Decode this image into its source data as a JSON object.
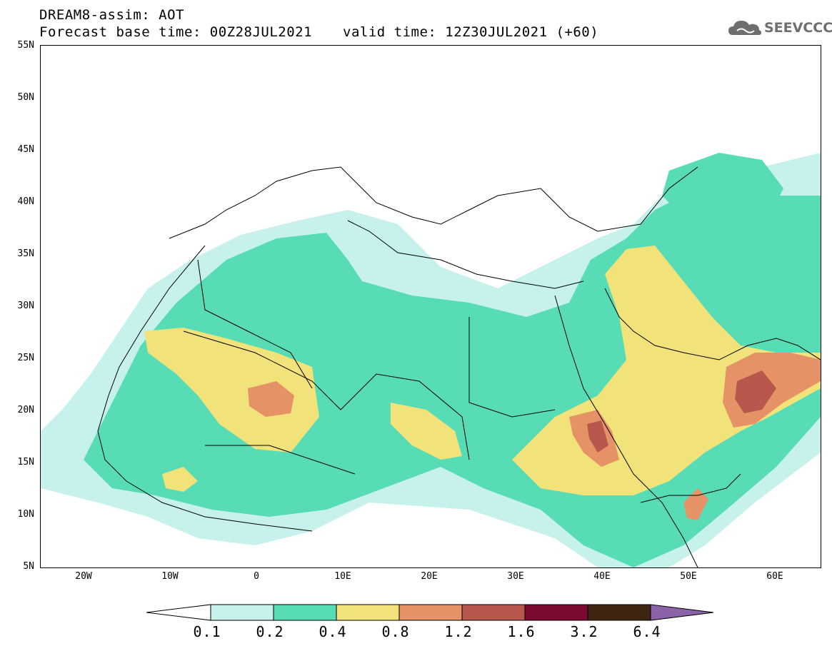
{
  "header": {
    "title": "DREAM8-assim: AOT",
    "base_time": "Forecast base time: 00Z28JUL2021",
    "valid_time": "valid time: 12Z30JUL2021 (+60)"
  },
  "logo": {
    "text": "SEEVCCC",
    "icon": "cloud-icon"
  },
  "map": {
    "lat_labels": [
      "55N",
      "50N",
      "45N",
      "40N",
      "35N",
      "30N",
      "25N",
      "20N",
      "15N",
      "10N",
      "5N"
    ],
    "lon_labels": [
      "20W",
      "10W",
      "0",
      "10E",
      "20E",
      "30E",
      "40E",
      "50E",
      "60E"
    ],
    "lat_range": [
      5,
      55
    ],
    "lon_range": [
      -25,
      65
    ],
    "variable": "AOT",
    "grid": true
  },
  "colorbar": {
    "levels": [
      "0.1",
      "0.2",
      "0.4",
      "0.8",
      "1.2",
      "1.6",
      "3.2",
      "6.4"
    ],
    "colors": [
      "#ffffff",
      "#c7f1eb",
      "#57dcb5",
      "#f1e27a",
      "#e59366",
      "#b8574c",
      "#7c0a30",
      "#3d2512",
      "#8a63a8"
    ]
  }
}
